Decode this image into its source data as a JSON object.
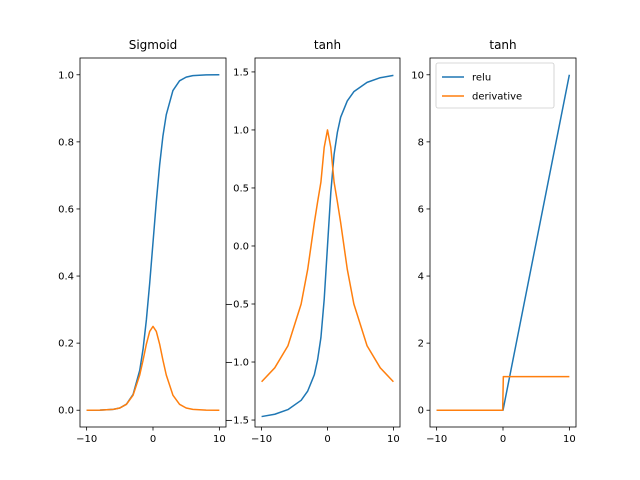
{
  "colors": {
    "series_1": "#1f77b4",
    "series_2": "#ff7f0e",
    "axes": "#000000",
    "background": "#ffffff"
  },
  "chart_data": [
    {
      "type": "line",
      "title": "Sigmoid",
      "xlabel": "",
      "ylabel": "",
      "xlim": [
        -11,
        11
      ],
      "ylim": [
        -0.05,
        1.05
      ],
      "x_ticks": [
        -10,
        0,
        10
      ],
      "y_ticks": [
        0.0,
        0.2,
        0.4,
        0.6,
        0.8,
        1.0
      ],
      "x_tick_labels": [
        "−10",
        "0",
        "10"
      ],
      "y_tick_labels": [
        "0.0",
        "0.2",
        "0.4",
        "0.6",
        "0.8",
        "1.0"
      ],
      "grid": false,
      "legend": null,
      "series": [
        {
          "color": "#1f77b4",
          "x": [
            -10,
            -8,
            -6,
            -5,
            -4,
            -3,
            -2,
            -1.5,
            -1,
            -0.5,
            0,
            0.5,
            1,
            1.5,
            2,
            3,
            4,
            5,
            6,
            8,
            10
          ],
          "y": [
            0.0,
            0.0003,
            0.0025,
            0.0067,
            0.018,
            0.047,
            0.119,
            0.182,
            0.269,
            0.378,
            0.5,
            0.622,
            0.731,
            0.818,
            0.881,
            0.953,
            0.982,
            0.993,
            0.9975,
            0.9997,
            1.0
          ]
        },
        {
          "color": "#ff7f0e",
          "x": [
            -10,
            -8,
            -6,
            -5,
            -4,
            -3,
            -2,
            -1.5,
            -1,
            -0.5,
            0,
            0.5,
            1,
            1.5,
            2,
            3,
            4,
            5,
            6,
            8,
            10
          ],
          "y": [
            0.0,
            0.0003,
            0.0025,
            0.0066,
            0.0177,
            0.045,
            0.105,
            0.149,
            0.197,
            0.235,
            0.25,
            0.235,
            0.197,
            0.149,
            0.105,
            0.045,
            0.0177,
            0.0066,
            0.0025,
            0.0003,
            0.0
          ]
        }
      ]
    },
    {
      "type": "line",
      "title": "tanh",
      "xlabel": "",
      "ylabel": "",
      "xlim": [
        -11,
        11
      ],
      "ylim": [
        -1.56,
        1.62
      ],
      "x_ticks": [
        -10,
        0,
        10
      ],
      "y_ticks": [
        -1.5,
        -1.0,
        -0.5,
        0.0,
        0.5,
        1.0,
        1.5
      ],
      "x_tick_labels": [
        "−10",
        "0",
        "10"
      ],
      "y_tick_labels": [
        "−1.5",
        "−1.0",
        "−0.5",
        "0.0",
        "0.5",
        "1.0",
        "1.5"
      ],
      "grid": false,
      "legend": null,
      "series": [
        {
          "color": "#1f77b4",
          "x": [
            -10,
            -8,
            -6,
            -4,
            -3,
            -2,
            -1.5,
            -1,
            -0.5,
            0,
            0.5,
            1,
            1.5,
            2,
            3,
            4,
            6,
            8,
            10
          ],
          "y": [
            -1.47,
            -1.45,
            -1.41,
            -1.33,
            -1.25,
            -1.11,
            -0.98,
            -0.79,
            -0.46,
            0.0,
            0.46,
            0.79,
            0.98,
            1.11,
            1.25,
            1.33,
            1.41,
            1.45,
            1.47
          ]
        },
        {
          "color": "#ff7f0e",
          "x": [
            -10,
            -8,
            -6,
            -4,
            -3,
            -2,
            -1.5,
            -1,
            -0.5,
            0,
            0.5,
            1,
            1.5,
            2,
            3,
            4,
            6,
            8,
            10
          ],
          "y": [
            -1.17,
            -1.05,
            -0.86,
            -0.5,
            -0.2,
            0.2,
            0.38,
            0.55,
            0.85,
            1.0,
            0.85,
            0.55,
            0.38,
            0.2,
            -0.2,
            -0.5,
            -0.86,
            -1.05,
            -1.17
          ]
        }
      ]
    },
    {
      "type": "line",
      "title": "tanh",
      "xlabel": "",
      "ylabel": "",
      "xlim": [
        -11,
        11
      ],
      "ylim": [
        -0.5,
        10.5
      ],
      "x_ticks": [
        -10,
        0,
        10
      ],
      "y_ticks": [
        0,
        2,
        4,
        6,
        8,
        10
      ],
      "x_tick_labels": [
        "−10",
        "0",
        "10"
      ],
      "y_tick_labels": [
        "0",
        "2",
        "4",
        "6",
        "8",
        "10"
      ],
      "grid": false,
      "legend": "upper left",
      "series": [
        {
          "name": "relu",
          "color": "#1f77b4",
          "x": [
            -10,
            0,
            10
          ],
          "y": [
            0,
            0,
            10
          ]
        },
        {
          "name": "derivative",
          "color": "#ff7f0e",
          "x": [
            -10,
            -0.05,
            0.05,
            10
          ],
          "y": [
            0,
            0,
            1,
            1
          ]
        }
      ]
    }
  ]
}
